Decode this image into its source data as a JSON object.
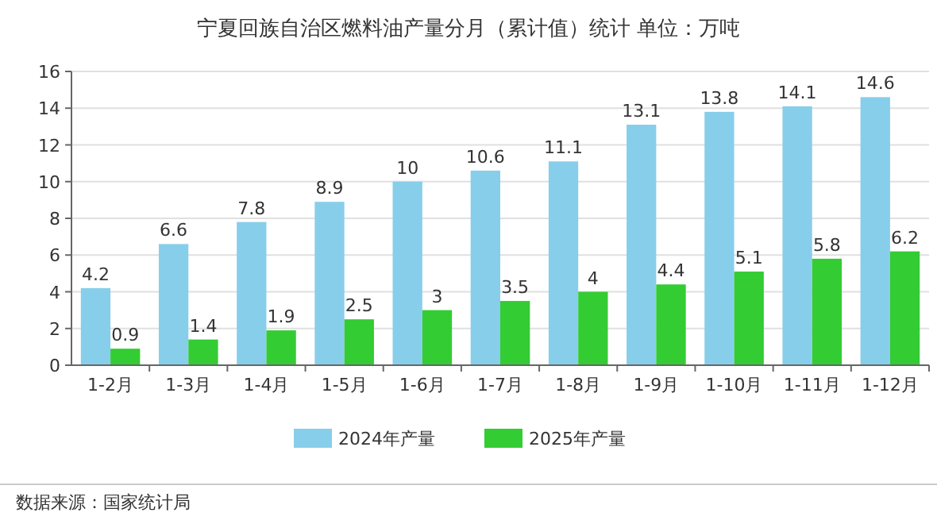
{
  "chart_data": {
    "type": "bar",
    "title": "宁夏回族自治区燃料油产量分月（累计值）统计 单位：万吨",
    "categories": [
      "1-2月",
      "1-3月",
      "1-4月",
      "1-5月",
      "1-6月",
      "1-7月",
      "1-8月",
      "1-9月",
      "1-10月",
      "1-11月",
      "1-12月"
    ],
    "series": [
      {
        "name": "2024年产量",
        "color": "#87ceeb",
        "values": [
          4.2,
          6.6,
          7.8,
          8.9,
          10,
          10.6,
          11.1,
          13.1,
          13.8,
          14.1,
          14.6
        ]
      },
      {
        "name": "2025年产量",
        "color": "#33cc33",
        "values": [
          0.9,
          1.4,
          1.9,
          2.5,
          3,
          3.5,
          4,
          4.4,
          5.1,
          5.8,
          6.2
        ]
      }
    ],
    "ylim": [
      0,
      16
    ],
    "yticks": [
      0,
      2,
      4,
      6,
      8,
      10,
      12,
      14,
      16
    ],
    "grid": "y",
    "legend": "bottom",
    "data_labels": true,
    "annotations": [
      "数据来源：国家统计局"
    ]
  }
}
